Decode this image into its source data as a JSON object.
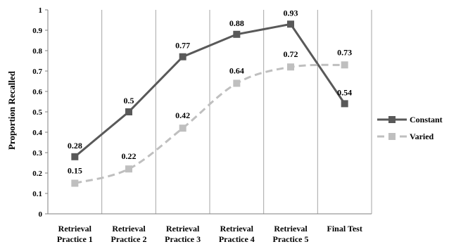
{
  "chart_data": {
    "type": "line",
    "categories": [
      [
        "Retrieval",
        "Practice 1"
      ],
      [
        "Retrieval",
        "Practice 2"
      ],
      [
        "Retrieval",
        "Practice 3"
      ],
      [
        "Retrieval",
        "Practice 4"
      ],
      [
        "Retrieval",
        "Practice 5"
      ],
      [
        "Final Test"
      ]
    ],
    "series": [
      {
        "name": "Constant",
        "values": [
          0.28,
          0.5,
          0.77,
          0.88,
          0.93,
          0.54
        ],
        "labels": [
          "0.28",
          "0.5",
          "0.77",
          "0.88",
          "0.93",
          "0.54"
        ],
        "color": "#595959",
        "dashed": false
      },
      {
        "name": "Varied",
        "values": [
          0.15,
          0.22,
          0.42,
          0.64,
          0.72,
          0.73
        ],
        "labels": [
          "0.15",
          "0.22",
          "0.42",
          "0.64",
          "0.72",
          "0.73"
        ],
        "color": "#bfbfbf",
        "dashed": true
      }
    ],
    "ylabel": "Proportion Recalled",
    "xlabel": "",
    "ylim": [
      0,
      1
    ],
    "yticks": [
      "0",
      "0.1",
      "0.2",
      "0.3",
      "0.4",
      "0.5",
      "0.6",
      "0.7",
      "0.8",
      "0.9",
      "1"
    ],
    "grid": "vertical category separators",
    "legend_position": "right"
  }
}
